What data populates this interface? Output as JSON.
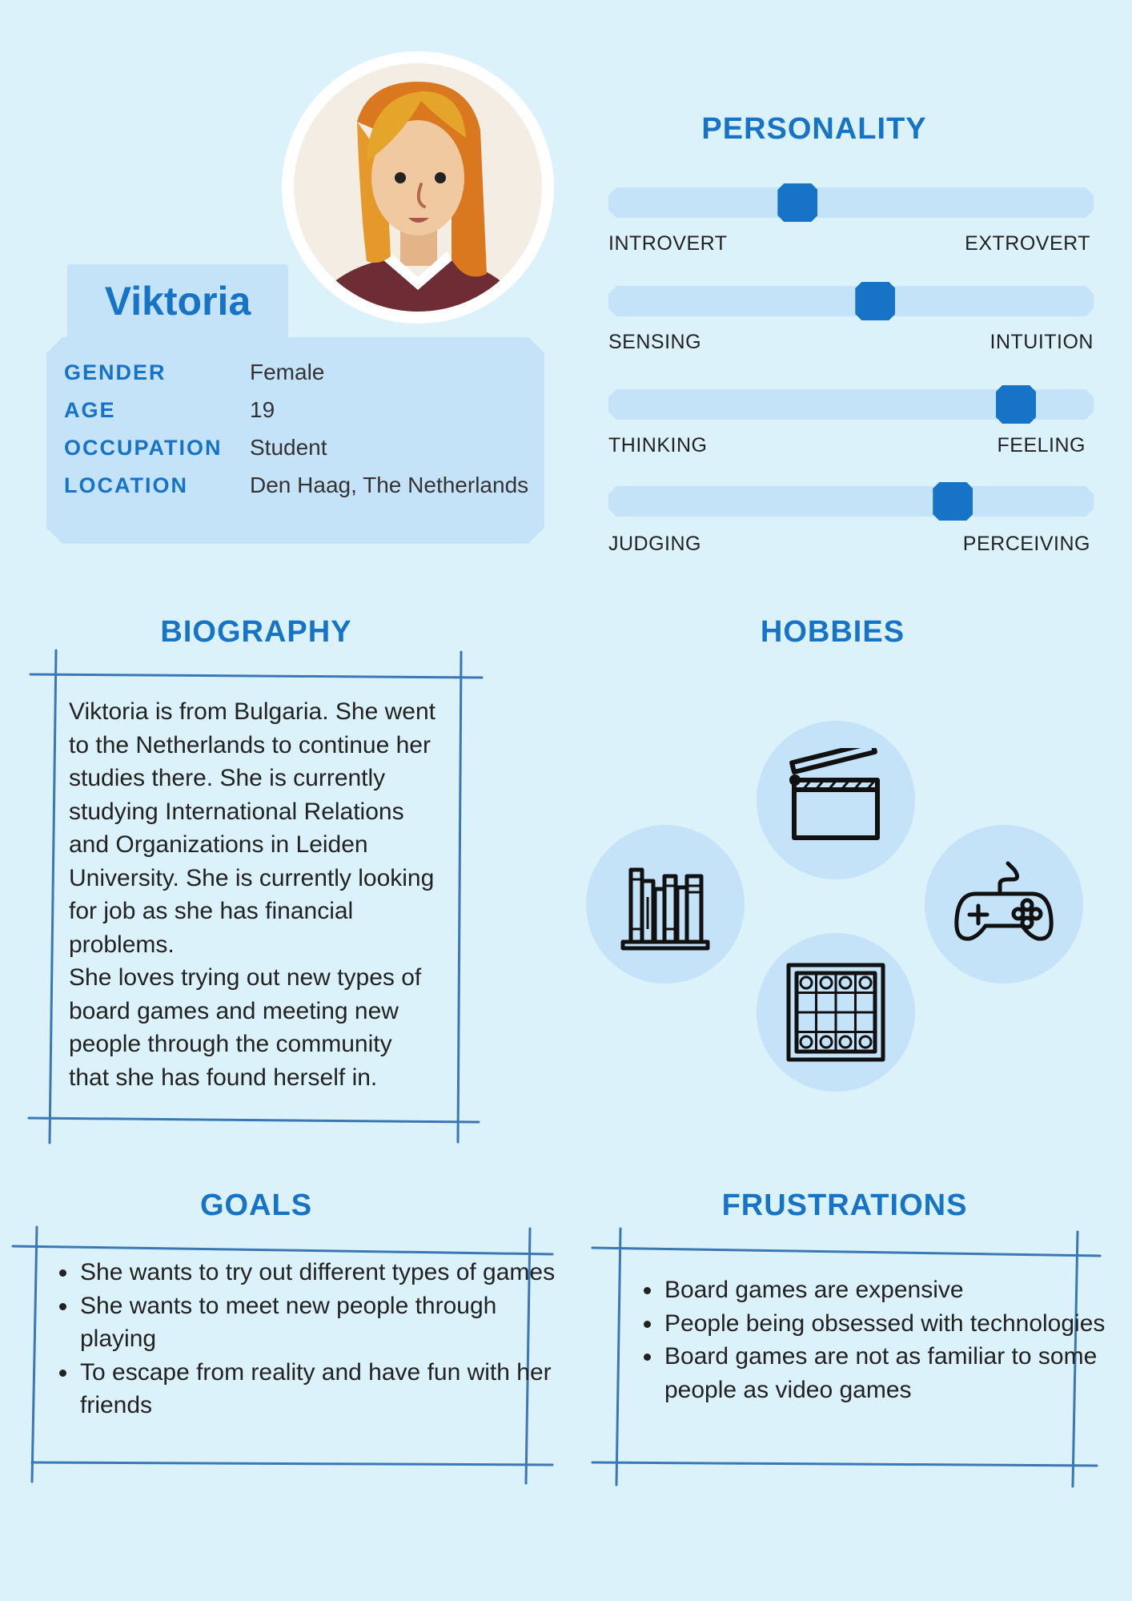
{
  "profile": {
    "name": "Viktoria",
    "fields": [
      {
        "label": "GENDER",
        "value": "Female"
      },
      {
        "label": "AGE",
        "value": "19"
      },
      {
        "label": "OCCUPATION",
        "value": "Student"
      },
      {
        "label": "LOCATION",
        "value": "Den Haag, The Netherlands"
      }
    ]
  },
  "personality": {
    "title": "PERSONALITY",
    "traits": [
      {
        "left": "INTROVERT",
        "right": "EXTROVERT",
        "level": 0.39
      },
      {
        "left": "SENSING",
        "right": "INTUITION",
        "level": 0.55
      },
      {
        "left": "THINKING",
        "right": "FEELING",
        "level": 0.84
      },
      {
        "left": "JUDGING",
        "right": "PERCEIVING",
        "level": 0.71
      }
    ]
  },
  "biography": {
    "title": "BIOGRAPHY",
    "lines": [
      "Viktoria is from Bulgaria. She went",
      "to the Netherlands to continue her",
      "studies there. She is currently",
      "studying International Relations",
      "and Organizations in Leiden",
      "University. She is currently looking",
      "for job as she has financial",
      "problems.",
      "She loves trying out new types of",
      "board games and meeting new",
      "people through the community",
      "that she has found herself in."
    ]
  },
  "hobbies": {
    "title": "HOBBIES",
    "icons": [
      "clapperboard-icon",
      "books-icon",
      "gamepad-icon",
      "board-game-icon"
    ]
  },
  "goals": {
    "title": "GOALS",
    "items": [
      "She wants to try out different types of games",
      "She wants to meet new people through playing",
      "To escape from reality and have fun with her friends"
    ]
  },
  "frustrations": {
    "title": "FRUSTRATIONS",
    "items": [
      "Board games are expensive",
      "People being obsessed with technologies",
      "Board games are not as familiar to some people as video games"
    ]
  },
  "colors": {
    "background": "#dcf2fa",
    "accent": "#1673c6",
    "panel": "#c4e2f8",
    "sketch_line": "#3a78b5"
  }
}
